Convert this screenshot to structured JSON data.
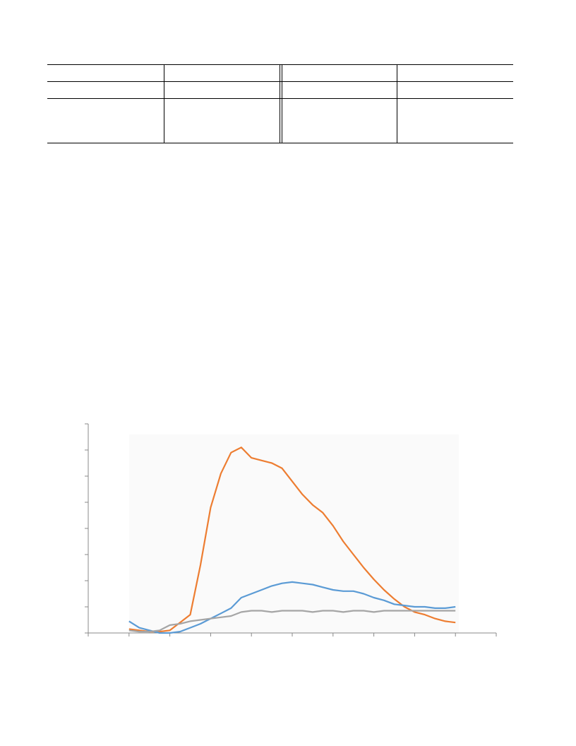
{
  "chart_data": {
    "type": "line",
    "x": [
      1,
      1.25,
      1.5,
      1.75,
      2,
      2.25,
      2.5,
      2.75,
      3,
      3.25,
      3.5,
      3.75,
      4,
      4.25,
      4.5,
      4.75,
      5,
      5.25,
      5.5,
      5.75,
      6,
      6.25,
      6.5,
      6.75,
      7,
      7.25,
      7.5,
      7.75,
      8,
      8.25,
      8.5,
      8.75,
      9
    ],
    "series": [
      {
        "color": "#ed7d31",
        "values": [
          0.15,
          0.1,
          0.05,
          0.05,
          0.1,
          0.4,
          0.7,
          2.6,
          4.8,
          6.1,
          6.9,
          7.1,
          6.7,
          6.6,
          6.5,
          6.3,
          5.8,
          5.3,
          4.9,
          4.6,
          4.1,
          3.5,
          3.0,
          2.5,
          2.05,
          1.65,
          1.3,
          1.0,
          0.8,
          0.7,
          0.55,
          0.45,
          0.4
        ]
      },
      {
        "color": "#5b9bd5",
        "values": [
          0.45,
          0.2,
          0.1,
          0.0,
          0.0,
          0.05,
          0.2,
          0.35,
          0.55,
          0.75,
          0.95,
          1.35,
          1.5,
          1.65,
          1.8,
          1.9,
          1.95,
          1.9,
          1.85,
          1.75,
          1.65,
          1.6,
          1.6,
          1.5,
          1.35,
          1.25,
          1.1,
          1.05,
          1.0,
          1.0,
          0.95,
          0.95,
          1.0
        ]
      },
      {
        "color": "#a5a5a5",
        "values": [
          0.1,
          0.05,
          0.05,
          0.1,
          0.3,
          0.35,
          0.45,
          0.5,
          0.55,
          0.6,
          0.65,
          0.8,
          0.85,
          0.85,
          0.8,
          0.85,
          0.85,
          0.85,
          0.8,
          0.85,
          0.85,
          0.8,
          0.85,
          0.85,
          0.8,
          0.85,
          0.85,
          0.85,
          0.85,
          0.85,
          0.85,
          0.85,
          0.85
        ]
      }
    ],
    "xlim": [
      0,
      10
    ],
    "xticks": [
      0,
      1,
      2,
      3,
      4,
      5,
      6,
      7,
      8,
      9,
      10
    ],
    "ylim": [
      0,
      8
    ],
    "yticks": [
      0,
      1,
      2,
      3,
      4,
      5,
      6,
      7,
      8
    ],
    "grid": false
  }
}
